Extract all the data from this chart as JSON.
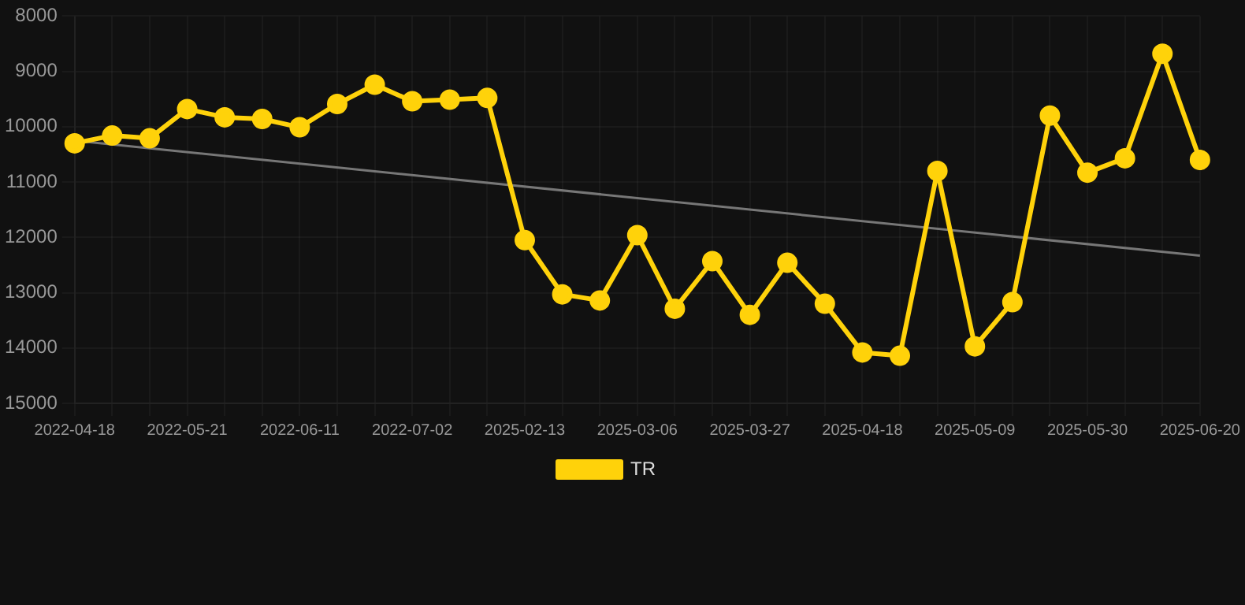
{
  "chart_data": {
    "type": "line",
    "categories": [
      "2022-04-18",
      null,
      null,
      "2022-05-21",
      null,
      null,
      "2022-06-11",
      null,
      null,
      "2022-07-02",
      null,
      null,
      "2025-02-13",
      null,
      null,
      "2025-03-06",
      null,
      null,
      "2025-03-27",
      null,
      null,
      "2025-04-18",
      null,
      null,
      "2025-05-09",
      null,
      null,
      "2025-05-30",
      null,
      null,
      "2025-06-20"
    ],
    "series": [
      {
        "name": "TR",
        "color": "#ffd20a",
        "marker": "circle",
        "values": [
          10300,
          10160,
          10210,
          9680,
          9830,
          9860,
          10010,
          9590,
          9240,
          9540,
          9510,
          9480,
          12050,
          13030,
          13140,
          11960,
          13290,
          12430,
          13400,
          12460,
          13200,
          14080,
          14140,
          10800,
          13970,
          13170,
          9800,
          10830,
          10570,
          8680,
          10600
        ]
      },
      {
        "type": "line",
        "color": "#777777",
        "marker": "none",
        "values": [
          10250,
          null,
          null,
          null,
          null,
          null,
          null,
          null,
          null,
          null,
          null,
          null,
          null,
          null,
          null,
          null,
          null,
          null,
          null,
          null,
          null,
          null,
          null,
          null,
          null,
          null,
          null,
          null,
          null,
          null,
          12330
        ]
      }
    ],
    "ylim": [
      15000,
      8000
    ],
    "yticks": [
      8000,
      9000,
      10000,
      11000,
      12000,
      13000,
      14000,
      15000
    ],
    "grid": true,
    "legend": "bottom"
  }
}
